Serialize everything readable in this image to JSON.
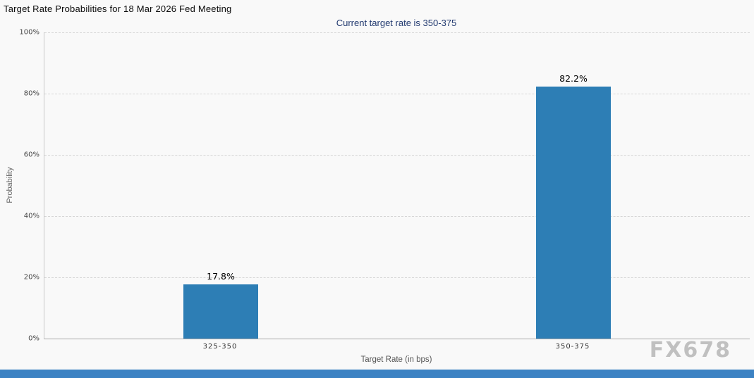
{
  "page": {
    "watermark": "FX678",
    "background": "#f9f9f9",
    "footer_bar_color": "#3c82c3"
  },
  "chart_data": {
    "type": "bar",
    "title": "Target Rate Probabilities for 18 Mar 2026 Fed Meeting",
    "subtitle": "Current target rate is 350-375",
    "xlabel": "Target Rate (in bps)",
    "ylabel": "Probability",
    "categories": [
      "325-350",
      "350-375"
    ],
    "values": [
      17.8,
      82.2
    ],
    "value_labels": [
      "17.8%",
      "82.2%"
    ],
    "ylim": [
      0,
      100
    ],
    "yticks": [
      "0%",
      "20%",
      "40%",
      "60%",
      "80%",
      "100%"
    ],
    "grid": "dashed horizontal",
    "legend": "none",
    "bar_color": "#2d7eb5",
    "subtitle_color": "#223a70"
  }
}
